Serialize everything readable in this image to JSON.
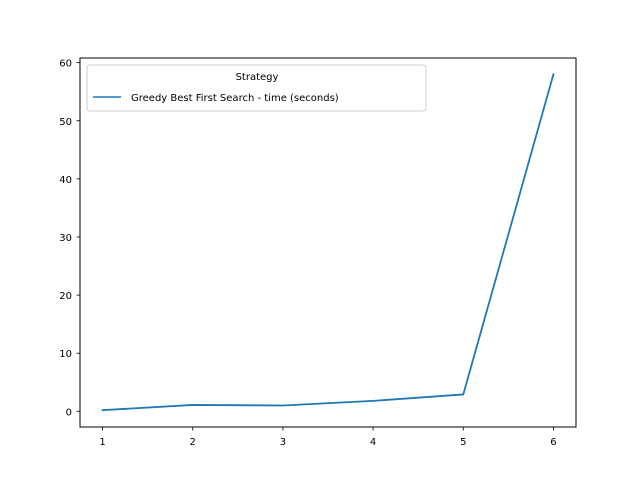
{
  "chart_data": {
    "type": "line",
    "title": "",
    "xlabel": "",
    "ylabel": "",
    "x": [
      1,
      2,
      3,
      4,
      5,
      6
    ],
    "series": [
      {
        "name": "Greedy Best First Search - time (seconds)",
        "values": [
          0.2,
          1.1,
          1.0,
          1.8,
          2.9,
          58.0
        ],
        "color": "#1f77b4"
      }
    ],
    "xlim": [
      0.75,
      6.25
    ],
    "ylim": [
      -2.7,
      60.8
    ],
    "xticks": [
      1,
      2,
      3,
      4,
      5,
      6
    ],
    "yticks": [
      0,
      10,
      20,
      30,
      40,
      50,
      60
    ],
    "grid": false,
    "legend": {
      "title": "Strategy",
      "position": "top-left"
    }
  }
}
